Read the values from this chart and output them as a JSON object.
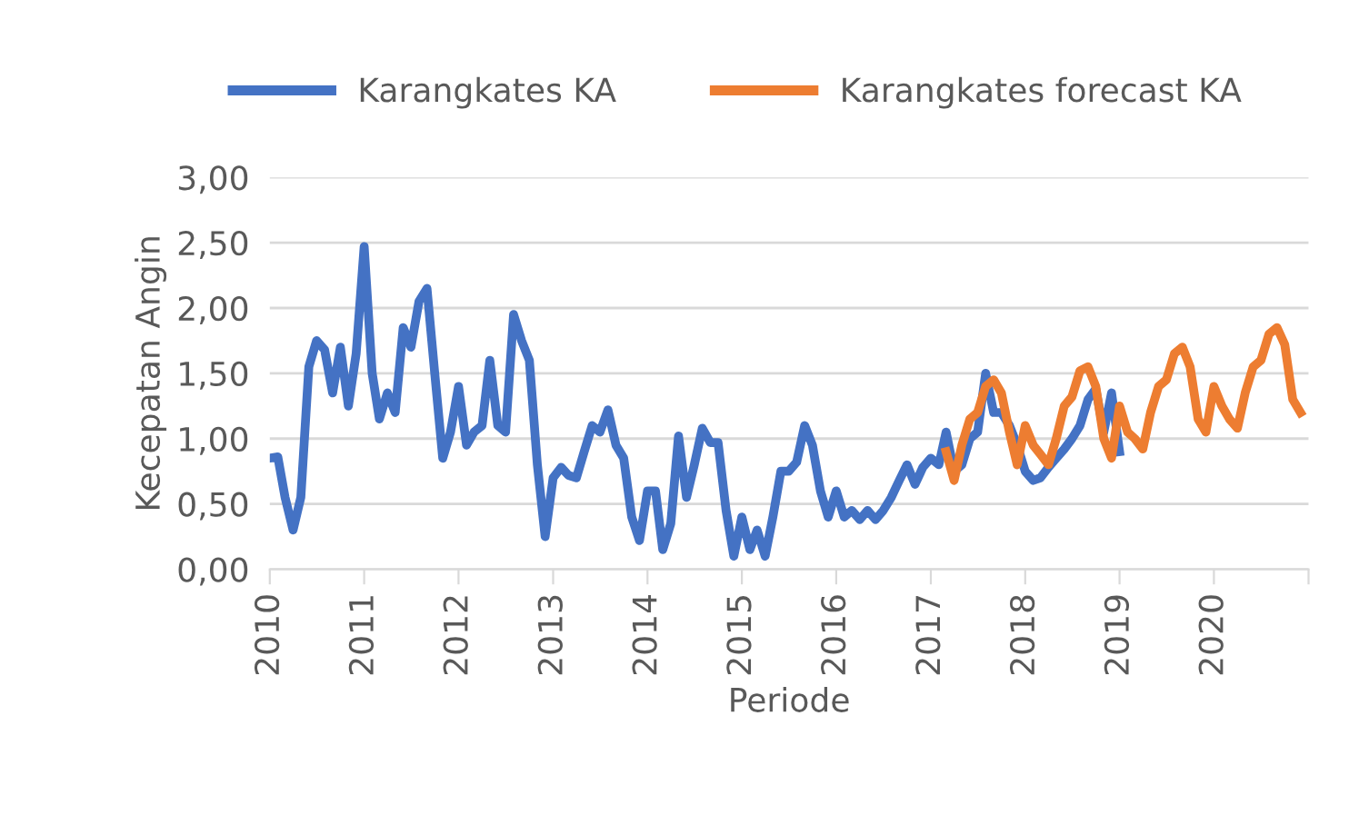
{
  "chart_data": {
    "type": "line",
    "xlabel": "Periode",
    "ylabel": "Kecepatan Angin",
    "legend": "top",
    "grid": "y",
    "marker": "none",
    "line_style": "solid",
    "ylim": [
      0,
      3
    ],
    "yticks": [
      {
        "value": 0,
        "label": "0,00"
      },
      {
        "value": 0.5,
        "label": "0,50"
      },
      {
        "value": 1,
        "label": "1,00"
      },
      {
        "value": 1.5,
        "label": "1,50"
      },
      {
        "value": 2,
        "label": "2,00"
      },
      {
        "value": 2.5,
        "label": "2,50"
      },
      {
        "value": 3,
        "label": "3,00"
      }
    ],
    "xlim": [
      "2010-01",
      "2021-01"
    ],
    "xticks": [
      {
        "value": "2010-01",
        "label": "2010"
      },
      {
        "value": "2011-01",
        "label": "2011"
      },
      {
        "value": "2012-01",
        "label": "2012"
      },
      {
        "value": "2013-01",
        "label": "2013"
      },
      {
        "value": "2014-01",
        "label": "2014"
      },
      {
        "value": "2015-01",
        "label": "2015"
      },
      {
        "value": "2016-01",
        "label": "2016"
      },
      {
        "value": "2017-01",
        "label": "2017"
      },
      {
        "value": "2018-01",
        "label": "2018"
      },
      {
        "value": "2019-01",
        "label": "2019"
      },
      {
        "value": "2020-01",
        "label": "2020"
      },
      {
        "value": "2021-01",
        "label": null
      }
    ],
    "series": [
      {
        "name": "Karangkates KA",
        "color": "#4472c4",
        "x": [
          "2010-01",
          "2010-02",
          "2010-03",
          "2010-04",
          "2010-05",
          "2010-06",
          "2010-07",
          "2010-08",
          "2010-09",
          "2010-10",
          "2010-11",
          "2010-12",
          "2011-01",
          "2011-02",
          "2011-03",
          "2011-04",
          "2011-05",
          "2011-06",
          "2011-07",
          "2011-08",
          "2011-09",
          "2011-10",
          "2011-11",
          "2011-12",
          "2012-01",
          "2012-02",
          "2012-03",
          "2012-04",
          "2012-05",
          "2012-06",
          "2012-07",
          "2012-08",
          "2012-09",
          "2012-10",
          "2012-11",
          "2012-12",
          "2013-01",
          "2013-02",
          "2013-03",
          "2013-04",
          "2013-05",
          "2013-06",
          "2013-07",
          "2013-08",
          "2013-09",
          "2013-10",
          "2013-11",
          "2013-12",
          "2014-01",
          "2014-02",
          "2014-03",
          "2014-04",
          "2014-05",
          "2014-06",
          "2014-07",
          "2014-08",
          "2014-09",
          "2014-10",
          "2014-11",
          "2014-12",
          "2015-01",
          "2015-02",
          "2015-03",
          "2015-04",
          "2015-05",
          "2015-06",
          "2015-07",
          "2015-08",
          "2015-09",
          "2015-10",
          "2015-11",
          "2015-12",
          "2016-01",
          "2016-02",
          "2016-03",
          "2016-04",
          "2016-05",
          "2016-06",
          "2016-07",
          "2016-08",
          "2016-09",
          "2016-10",
          "2016-11",
          "2016-12",
          "2017-01",
          "2017-02",
          "2017-03",
          "2017-04",
          "2017-05",
          "2017-06",
          "2017-07",
          "2017-08",
          "2017-09",
          "2017-10",
          "2017-11",
          "2017-12",
          "2018-01",
          "2018-02",
          "2018-03",
          "2018-04",
          "2018-05",
          "2018-06",
          "2018-07",
          "2018-08",
          "2018-09",
          "2018-10",
          "2018-11",
          "2018-12",
          "2019-01"
        ],
        "values": [
          0.85,
          0.86,
          0.55,
          0.3,
          0.55,
          1.55,
          1.75,
          1.68,
          1.35,
          1.7,
          1.25,
          1.65,
          2.47,
          1.5,
          1.15,
          1.35,
          1.2,
          1.85,
          1.7,
          2.05,
          2.15,
          1.5,
          0.85,
          1.05,
          1.4,
          0.95,
          1.05,
          1.1,
          1.6,
          1.1,
          1.05,
          1.95,
          1.75,
          1.6,
          0.8,
          0.25,
          0.7,
          0.78,
          0.72,
          0.7,
          0.9,
          1.1,
          1.05,
          1.22,
          0.95,
          0.85,
          0.4,
          0.22,
          0.6,
          0.6,
          0.15,
          0.35,
          1.02,
          0.55,
          0.8,
          1.08,
          0.97,
          0.97,
          0.45,
          0.1,
          0.4,
          0.15,
          0.3,
          0.1,
          0.4,
          0.75,
          0.75,
          0.82,
          1.1,
          0.95,
          0.6,
          0.4,
          0.6,
          0.4,
          0.45,
          0.38,
          0.45,
          0.38,
          0.45,
          0.55,
          0.68,
          0.8,
          0.65,
          0.78,
          0.85,
          0.8,
          1.05,
          0.75,
          0.8,
          1.0,
          1.05,
          1.5,
          1.2,
          1.2,
          1.1,
          0.95,
          0.75,
          0.68,
          0.7,
          0.78,
          0.85,
          0.92,
          1.0,
          1.1,
          1.3,
          1.38,
          1.05,
          1.35,
          0.9
        ]
      },
      {
        "name": "Karangkates forecast KA",
        "color": "#ed7d31",
        "x": [
          "2017-03",
          "2017-04",
          "2017-05",
          "2017-06",
          "2017-07",
          "2017-08",
          "2017-09",
          "2017-10",
          "2017-11",
          "2017-12",
          "2018-01",
          "2018-02",
          "2018-03",
          "2018-04",
          "2018-05",
          "2018-06",
          "2018-07",
          "2018-08",
          "2018-09",
          "2018-10",
          "2018-11",
          "2018-12",
          "2019-01",
          "2019-02",
          "2019-03",
          "2019-04",
          "2019-05",
          "2019-06",
          "2019-07",
          "2019-08",
          "2019-09",
          "2019-10",
          "2019-11",
          "2019-12",
          "2020-01",
          "2020-02",
          "2020-03",
          "2020-04",
          "2020-05",
          "2020-06",
          "2020-07",
          "2020-08",
          "2020-09",
          "2020-10",
          "2020-11",
          "2020-12"
        ],
        "values": [
          0.9,
          0.68,
          0.95,
          1.15,
          1.2,
          1.4,
          1.45,
          1.35,
          1.05,
          0.8,
          1.1,
          0.95,
          0.88,
          0.8,
          1.0,
          1.25,
          1.32,
          1.52,
          1.55,
          1.4,
          1.0,
          0.85,
          1.25,
          1.05,
          1.0,
          0.92,
          1.2,
          1.4,
          1.45,
          1.65,
          1.7,
          1.55,
          1.15,
          1.05,
          1.4,
          1.25,
          1.15,
          1.08,
          1.35,
          1.55,
          1.6,
          1.8,
          1.85,
          1.72,
          1.3,
          1.2
        ]
      }
    ]
  }
}
